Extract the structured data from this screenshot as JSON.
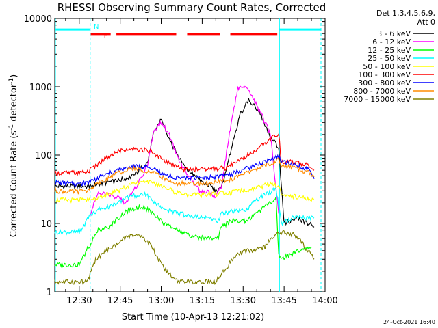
{
  "chart_data": {
    "type": "line",
    "title": "RHESSI Observing Summary Count Rates, Corrected",
    "xlabel": "Start Time (10-Apr-13 12:21:02)",
    "ylabel_main": "Corrected Count Rate (s",
    "ylabel_sup1": "-1",
    "ylabel_mid": " detector",
    "ylabel_sup2": "-1",
    "ylabel_end": ")",
    "y_scale": "log",
    "ylim": [
      1,
      10000
    ],
    "xlim": [
      "12:21:02",
      "14:00:00"
    ],
    "xticks": [
      "12:30",
      "12:45",
      "13:00",
      "13:15",
      "13:30",
      "13:45",
      "14:00"
    ],
    "xtick_minutes": [
      30,
      45,
      60,
      75,
      90,
      105,
      120
    ],
    "x_min_minutes": 21.03,
    "x_max_minutes": 120,
    "yticks": [
      "1",
      "10",
      "100",
      "1000",
      "10000"
    ],
    "ytick_values": [
      1,
      10,
      100,
      1000,
      10000
    ],
    "legend": {
      "header1": "Det 1,3,4,5,6,9,",
      "header2": "Att 0",
      "placement": "right"
    },
    "series": [
      {
        "name": "3 - 6 keV",
        "color": "#000000",
        "x": [
          21,
          34,
          37,
          44,
          50,
          55,
          57,
          60,
          63,
          66,
          70,
          75,
          78,
          80,
          82,
          85,
          89,
          92,
          96,
          100,
          103,
          105,
          110,
          116
        ],
        "y": [
          35,
          35,
          38,
          42,
          50,
          80,
          200,
          330,
          170,
          100,
          60,
          40,
          35,
          30,
          32,
          95,
          400,
          650,
          420,
          190,
          130,
          10,
          12,
          9
        ]
      },
      {
        "name": "6 - 12 keV",
        "color": "#ff00ff",
        "x": [
          34,
          37,
          43,
          47,
          50,
          55,
          57,
          60,
          63,
          66,
          70,
          74,
          78,
          80,
          82,
          85,
          88,
          90,
          92,
          96,
          100,
          103
        ],
        "y": [
          14,
          28,
          25,
          20,
          30,
          70,
          200,
          300,
          200,
          90,
          50,
          30,
          28,
          24,
          35,
          200,
          950,
          1050,
          850,
          450,
          200,
          14
        ]
      },
      {
        "name": "12 - 25 keV",
        "color": "#00ff00",
        "x": [
          21,
          30,
          34,
          37,
          41,
          47,
          53,
          57,
          61,
          66,
          71,
          77,
          81,
          82,
          86,
          91,
          96,
          100,
          102,
          103,
          104,
          110,
          115
        ],
        "y": [
          2.5,
          2.5,
          5,
          8,
          9,
          15,
          18,
          14,
          10,
          8,
          6.5,
          6,
          6.5,
          9,
          11,
          11,
          15,
          20,
          25,
          3.5,
          3,
          4,
          4.5
        ]
      },
      {
        "name": "25 - 50 keV",
        "color": "#00ffff",
        "x": [
          21,
          30,
          34,
          37,
          42,
          47,
          54,
          58,
          62,
          66,
          71,
          76,
          81,
          82,
          86,
          91,
          96,
          100,
          102,
          104,
          108,
          116
        ],
        "y": [
          7.5,
          7.5,
          13,
          16,
          18,
          24,
          27,
          20,
          16,
          14,
          13,
          12,
          11,
          14,
          15,
          16,
          24,
          28,
          33,
          10,
          12,
          12
        ]
      },
      {
        "name": "50 - 100 keV",
        "color": "#ffff00",
        "x": [
          21,
          33,
          37,
          40,
          45,
          50,
          55,
          58,
          61,
          64,
          67,
          70,
          75,
          80,
          85,
          90,
          95,
          100,
          103,
          104,
          108,
          116
        ],
        "y": [
          22,
          22,
          24,
          26,
          31,
          38,
          40,
          38,
          34,
          30,
          27,
          26,
          26,
          27,
          28,
          30,
          33,
          38,
          35,
          28,
          25,
          22
        ]
      },
      {
        "name": "100 - 300 keV",
        "color": "#ff0000",
        "x": [
          21,
          30,
          33,
          38,
          44,
          50,
          56,
          60,
          64,
          68,
          72,
          78,
          84,
          86,
          90,
          95,
          100,
          103,
          104,
          108,
          114,
          116
        ],
        "y": [
          55,
          55,
          57,
          80,
          115,
          125,
          115,
          90,
          70,
          62,
          62,
          62,
          65,
          75,
          90,
          120,
          170,
          210,
          80,
          80,
          70,
          60
        ]
      },
      {
        "name": "300 - 800 keV",
        "color": "#0000ff",
        "x": [
          21,
          30,
          33,
          38,
          44,
          50,
          56,
          60,
          64,
          68,
          72,
          78,
          84,
          88,
          92,
          96,
          100,
          103,
          104,
          108,
          114,
          116
        ],
        "y": [
          40,
          37,
          40,
          48,
          60,
          68,
          65,
          55,
          48,
          46,
          46,
          47,
          50,
          57,
          65,
          76,
          88,
          95,
          78,
          75,
          60,
          45
        ]
      },
      {
        "name": "800 - 7000 keV",
        "color": "#ff8c00",
        "x": [
          21,
          30,
          33,
          38,
          44,
          50,
          56,
          60,
          64,
          68,
          72,
          78,
          84,
          88,
          92,
          96,
          100,
          103,
          104,
          108,
          114,
          116
        ],
        "y": [
          30,
          29,
          31,
          40,
          55,
          63,
          58,
          48,
          40,
          38,
          38,
          39,
          42,
          48,
          56,
          65,
          76,
          85,
          68,
          66,
          55,
          48
        ]
      },
      {
        "name": "7000 - 15000 keV",
        "color": "#808000",
        "x": [
          21,
          30,
          33,
          36,
          40,
          44,
          48,
          52,
          56,
          58,
          62,
          66,
          70,
          74,
          80,
          83,
          86,
          90,
          94,
          98,
          101,
          104,
          108,
          112,
          116
        ],
        "y": [
          1.4,
          1.4,
          1.4,
          3,
          4,
          5,
          6.5,
          6.5,
          5,
          3.5,
          2,
          1.4,
          1.4,
          1.4,
          1.4,
          2,
          3,
          4,
          4,
          4.5,
          6.5,
          7.5,
          7,
          5,
          3
        ]
      }
    ],
    "flags": [
      {
        "label": "N",
        "color": "#00ffff",
        "segments": [
          [
            21.2,
            33.8
          ],
          [
            103.3,
            118.5
          ]
        ],
        "level": 6900,
        "markers_minutes": [
          34,
          103.3,
          118.5
        ]
      },
      {
        "label": "F",
        "color": "#ff0000",
        "segments": [
          [
            34.2,
            41.5
          ],
          [
            43.6,
            65.5
          ],
          [
            69.5,
            81.5
          ],
          [
            85.3,
            102.5
          ]
        ],
        "level": 5900
      }
    ],
    "annotation": "24-Oct-2021 16:40"
  }
}
